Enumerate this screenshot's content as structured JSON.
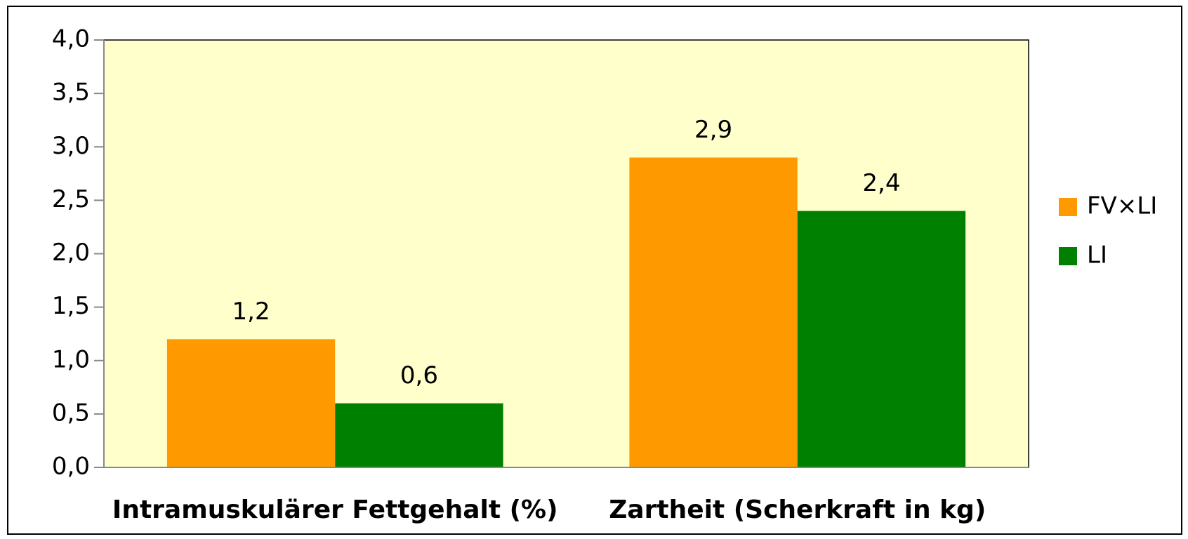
{
  "chart_data": {
    "type": "bar",
    "categories": [
      "Intramuskulärer Fettgehalt (%)",
      "Zartheit (Scherkraft in kg)"
    ],
    "series": [
      {
        "name": "FV×LI",
        "color": "#ff9900",
        "values": [
          1.2,
          2.9
        ],
        "value_labels": [
          "1,2",
          "2,9"
        ]
      },
      {
        "name": "LI",
        "color": "#008000",
        "values": [
          0.6,
          2.4
        ],
        "value_labels": [
          "0,6",
          "2,4"
        ]
      }
    ],
    "ylim": [
      0,
      4
    ],
    "yticks": [
      {
        "value": 0,
        "label": "0,0"
      },
      {
        "value": 0.5,
        "label": "0,5"
      },
      {
        "value": 1,
        "label": "1,0"
      },
      {
        "value": 1.5,
        "label": "1,5"
      },
      {
        "value": 2,
        "label": "2,0"
      },
      {
        "value": 2.5,
        "label": "2,5"
      },
      {
        "value": 3,
        "label": "3,0"
      },
      {
        "value": 3.5,
        "label": "3,5"
      },
      {
        "value": 4,
        "label": "4,0"
      }
    ],
    "legend": "right",
    "plot_background": "#ffffcc"
  }
}
